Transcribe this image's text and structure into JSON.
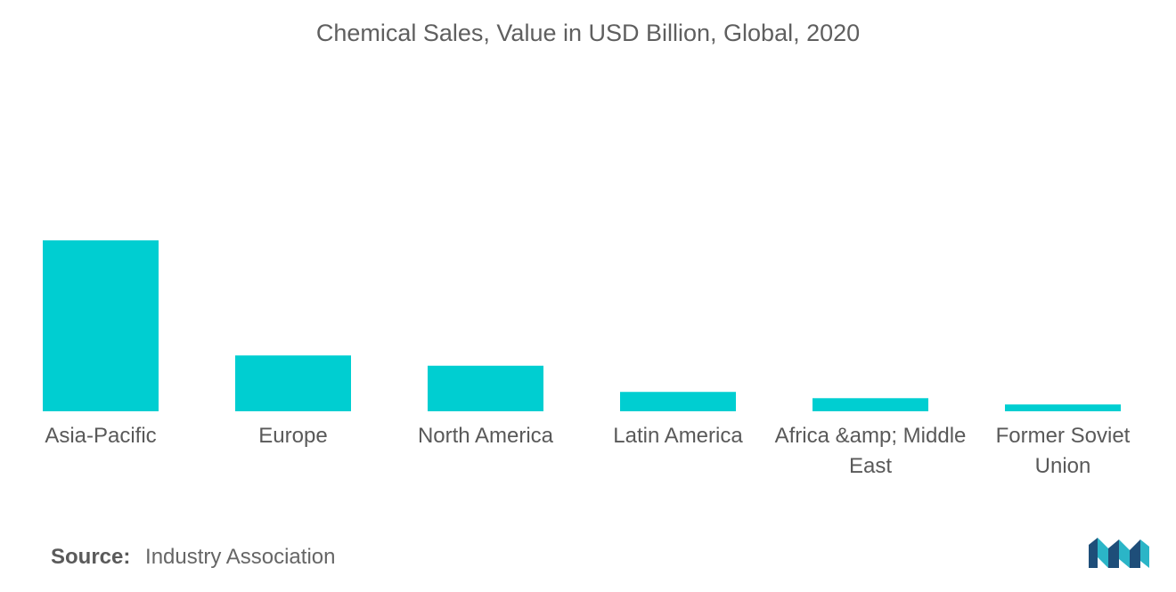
{
  "chart_data": {
    "type": "bar",
    "title": "Chemical Sales, Value in USD Billion, Global, 2020",
    "categories": [
      "Asia-Pacific",
      "Europe",
      "North America",
      "Latin America",
      "Africa &amp; Middle East",
      "Former Soviet Union"
    ],
    "category_lines": [
      [
        "Asia-Pacific"
      ],
      [
        "Europe"
      ],
      [
        "North America"
      ],
      [
        "Latin America"
      ],
      [
        "Africa &amp; Middle",
        "East"
      ],
      [
        "Former Soviet",
        "Union"
      ]
    ],
    "values": [
      1500,
      490,
      400,
      170,
      115,
      60
    ],
    "ylim": [
      0,
      1500
    ],
    "xlabel": "",
    "ylabel": "",
    "grid": false,
    "legend": "none",
    "bar_color": "#00ced1"
  },
  "source": {
    "label": "Source:",
    "text": "Industry Association"
  },
  "logo": {
    "icon": "mordor-intelligence-logo-icon",
    "colors": [
      "#1e4e79",
      "#2bb5c7"
    ]
  }
}
